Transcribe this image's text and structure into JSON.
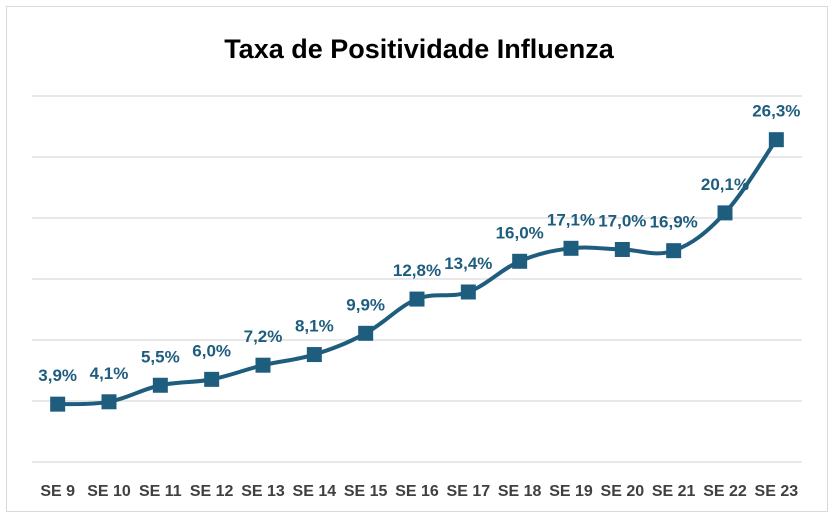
{
  "chart_data": {
    "type": "line",
    "title": "Taxa de Positividade Influenza",
    "categories": [
      "SE 9",
      "SE 10",
      "SE 11",
      "SE 12",
      "SE 13",
      "SE 14",
      "SE 15",
      "SE 16",
      "SE 17",
      "SE 18",
      "SE 19",
      "SE 20",
      "SE 21",
      "SE 22",
      "SE 23"
    ],
    "series": [
      {
        "values": [
          3.9,
          4.1,
          5.5,
          6.0,
          7.2,
          8.1,
          9.9,
          12.8,
          13.4,
          16.0,
          17.1,
          17.0,
          16.9,
          20.1,
          26.3
        ],
        "labels": [
          "3,9%",
          "4,1%",
          "5,5%",
          "6,0%",
          "7,2%",
          "8,1%",
          "9,9%",
          "12,8%",
          "13,4%",
          "16,0%",
          "17,1%",
          "17,0%",
          "16,9%",
          "20,1%",
          "26,3%"
        ]
      }
    ],
    "ylim": [
      -1,
      30
    ],
    "grid": true,
    "legend": "none",
    "colors": {
      "line": "#1f5d7e",
      "marker": "#1f5d7e",
      "label": "#1f5d7e",
      "grid": "#d9d9d9"
    }
  }
}
